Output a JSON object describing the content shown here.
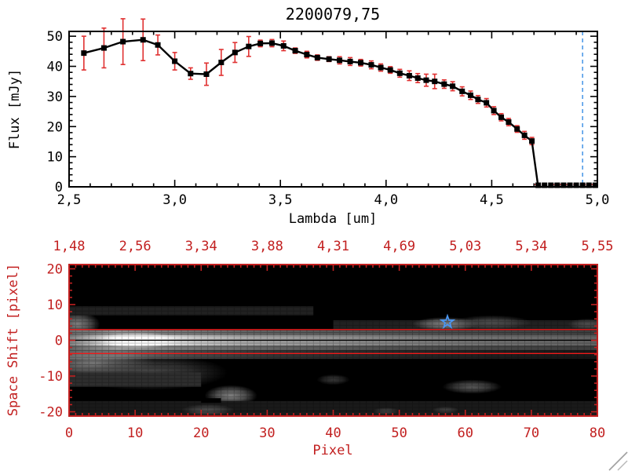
{
  "title": "2200079,75",
  "colors": {
    "background": "#ffffff",
    "spectrum_axis": "#000000",
    "error_bar_red": "#e03131",
    "zero_dash_red": "#e03131",
    "image_axis_red": "#c22020",
    "aperture_line_red": "#ef1a1a",
    "center_line_black": "#000000",
    "star_blue": "#4b96f0",
    "vline_blue": "#4f9be8",
    "resize_grip_gray": "#a0a0a0"
  },
  "chart_data": [
    {
      "type": "line",
      "title": "2200079,75",
      "xlabel": "Lambda [um]",
      "ylabel": "Flux [mJy]",
      "xlim": [
        2.5,
        5.0
      ],
      "ylim": [
        0,
        51.6
      ],
      "grid": false,
      "xticks": {
        "values": [
          2.5,
          3.0,
          3.5,
          4.0,
          4.5,
          5.0
        ],
        "labels": [
          "2,5",
          "3,0",
          "3,5",
          "4,0",
          "4,5",
          "5,0"
        ]
      },
      "yticks": {
        "values": [
          0,
          10,
          20,
          30,
          40,
          50
        ],
        "labels": [
          "0",
          "10",
          "20",
          "30",
          "40",
          "50"
        ]
      },
      "series": [
        {
          "name": "flux-spectrum",
          "marker": "filled-square",
          "line_color": "#000000",
          "error_color": "#e03131",
          "points": [
            [
              2.57,
              44.4,
              5.6
            ],
            [
              2.665,
              46.1,
              6.6
            ],
            [
              2.755,
              48.2,
              7.6
            ],
            [
              2.85,
              48.8,
              6.9
            ],
            [
              2.92,
              47.1,
              3.3
            ],
            [
              3.0,
              41.7,
              2.9
            ],
            [
              3.075,
              37.6,
              1.9
            ],
            [
              3.15,
              37.4,
              3.7
            ],
            [
              3.22,
              41.3,
              4.3
            ],
            [
              3.285,
              44.6,
              3.3
            ],
            [
              3.35,
              46.6,
              3.3
            ],
            [
              3.405,
              47.6,
              1.1
            ],
            [
              3.46,
              47.7,
              1.2
            ],
            [
              3.515,
              46.8,
              1.6
            ],
            [
              3.57,
              45.2,
              0.9
            ],
            [
              3.625,
              43.9,
              1.1
            ],
            [
              3.675,
              42.9,
              0.9
            ],
            [
              3.73,
              42.4,
              0.8
            ],
            [
              3.78,
              42.0,
              1.2
            ],
            [
              3.83,
              41.6,
              1.3
            ],
            [
              3.88,
              41.2,
              1.1
            ],
            [
              3.93,
              40.5,
              1.3
            ],
            [
              3.975,
              39.6,
              1.2
            ],
            [
              4.02,
              38.8,
              1.1
            ],
            [
              4.065,
              37.7,
              1.3
            ],
            [
              4.11,
              36.9,
              1.6
            ],
            [
              4.15,
              36.1,
              1.5
            ],
            [
              4.19,
              35.4,
              2.0
            ],
            [
              4.23,
              35.0,
              2.4
            ],
            [
              4.275,
              34.1,
              1.4
            ],
            [
              4.315,
              33.4,
              1.5
            ],
            [
              4.36,
              31.7,
              1.5
            ],
            [
              4.4,
              30.4,
              1.4
            ],
            [
              4.435,
              29.0,
              1.3
            ],
            [
              4.475,
              27.9,
              1.4
            ],
            [
              4.51,
              25.3,
              1.3
            ],
            [
              4.545,
              23.1,
              1.2
            ],
            [
              4.58,
              21.5,
              1.2
            ],
            [
              4.62,
              19.2,
              1.1
            ],
            [
              4.655,
              17.1,
              1.3
            ],
            [
              4.69,
              15.2,
              1.2
            ],
            [
              4.72,
              0,
              0
            ],
            [
              4.75,
              0,
              0
            ],
            [
              4.78,
              0,
              0
            ],
            [
              4.81,
              0,
              0
            ],
            [
              4.84,
              0,
              0
            ],
            [
              4.87,
              0,
              0
            ],
            [
              4.9,
              0,
              0
            ],
            [
              4.93,
              0,
              0
            ],
            [
              4.96,
              0,
              0
            ],
            [
              4.99,
              0,
              0
            ]
          ]
        }
      ],
      "zero_dashed_line": {
        "from": 4.7,
        "to": 5.0,
        "flux": 0,
        "style": "dashed",
        "color": "#e03131"
      },
      "vline": {
        "lambda": 4.93,
        "style": "dashed",
        "color": "#4f9be8"
      }
    },
    {
      "type": "heatmap",
      "xlabel": "Pixel",
      "ylabel": "Space Shift [pixel]",
      "xlim": [
        0,
        80
      ],
      "ylim": [
        -21.2,
        21.2
      ],
      "xticks": {
        "values": [
          0,
          10,
          20,
          30,
          40,
          50,
          60,
          70,
          80
        ],
        "labels": [
          "0",
          "10",
          "20",
          "30",
          "40",
          "50",
          "60",
          "70",
          "80"
        ]
      },
      "yticks": {
        "values": [
          20,
          10,
          0,
          -10,
          -20
        ],
        "labels": [
          "20",
          "10",
          "0",
          "-10",
          "-20"
        ]
      },
      "top_axis": {
        "tick_positions": [
          0,
          10,
          20,
          30,
          40,
          50,
          60,
          70,
          80
        ],
        "labels": [
          "1,48",
          "2,56",
          "3,34",
          "3,88",
          "4,31",
          "4,69",
          "5,03",
          "5,34",
          "5,55"
        ]
      },
      "overlays": {
        "red_hlines_shift": [
          3.0,
          -3.7
        ],
        "black_hline_shift": 0,
        "star_marker": {
          "pixel": 57.3,
          "shift": 5.1
        }
      },
      "features": [
        {
          "kind": "hband",
          "s0": -1.5,
          "s1": 1.5,
          "stops": [
            [
              0,
              0.5
            ],
            [
              0.05,
              0.75
            ],
            [
              0.09,
              0.97
            ],
            [
              0.17,
              0.95
            ],
            [
              0.24,
              0.78
            ],
            [
              0.33,
              0.66
            ],
            [
              0.47,
              0.58
            ],
            [
              0.63,
              0.5
            ],
            [
              0.8,
              0.44
            ],
            [
              1,
              0.38
            ]
          ]
        },
        {
          "kind": "hband",
          "s0": 1.5,
          "s1": 2.8,
          "stops": [
            [
              0,
              0.33
            ],
            [
              0.09,
              0.58
            ],
            [
              0.18,
              0.48
            ],
            [
              0.35,
              0.38
            ],
            [
              0.55,
              0.33
            ],
            [
              0.78,
              0.28
            ],
            [
              1,
              0.24
            ]
          ]
        },
        {
          "kind": "hband",
          "s0": -2.8,
          "s1": -1.5,
          "stops": [
            [
              0,
              0.38
            ],
            [
              0.09,
              0.62
            ],
            [
              0.2,
              0.48
            ],
            [
              0.4,
              0.38
            ],
            [
              0.62,
              0.31
            ],
            [
              1,
              0.24
            ]
          ]
        },
        {
          "kind": "hband",
          "s0": -5.2,
          "s1": -2.8,
          "stops": [
            [
              0,
              0.34
            ],
            [
              0.1,
              0.42
            ],
            [
              0.22,
              0.28
            ],
            [
              0.38,
              0.2
            ],
            [
              0.55,
              0.16
            ],
            [
              0.78,
              0.12
            ],
            [
              1,
              0.09
            ]
          ]
        },
        {
          "kind": "blob",
          "p": 10.5,
          "s": 0,
          "rp": 6,
          "rs": 2.3,
          "i": 1
        },
        {
          "kind": "blob",
          "p": 1.2,
          "s": 4.5,
          "rp": 3.5,
          "rs": 3.5,
          "i": 0.5
        },
        {
          "kind": "blob",
          "p": 4,
          "s": -6.5,
          "rp": 9,
          "rs": 4.5,
          "i": 0.5
        },
        {
          "kind": "blob",
          "p": 12,
          "s": -9,
          "rp": 12,
          "rs": 5,
          "i": 0.28
        },
        {
          "kind": "blob",
          "p": 24.5,
          "s": -15.5,
          "rp": 4,
          "rs": 3,
          "i": 0.5
        },
        {
          "kind": "rect",
          "p0": 0,
          "p1": 37,
          "s0": 7,
          "s1": 9.5,
          "i": 0.13
        },
        {
          "kind": "rect",
          "p0": 0,
          "p1": 20,
          "s0": -13,
          "s1": -9,
          "i": 0.18
        },
        {
          "kind": "rect",
          "p0": 40,
          "p1": 80,
          "s0": 2.8,
          "s1": 5.6,
          "i": 0.13
        },
        {
          "kind": "blob",
          "p": 57,
          "s": 4.6,
          "rp": 5,
          "rs": 1.9,
          "i": 0.5
        },
        {
          "kind": "blob",
          "p": 64,
          "s": 5,
          "rp": 6,
          "rs": 2,
          "i": 0.3
        },
        {
          "kind": "blob",
          "p": 78.5,
          "s": 4.5,
          "rp": 3,
          "rs": 1.6,
          "i": 0.3
        },
        {
          "kind": "blob",
          "p": 61,
          "s": -13,
          "rp": 4.5,
          "rs": 2,
          "i": 0.35
        },
        {
          "kind": "blob",
          "p": 40,
          "s": -11,
          "rp": 2.5,
          "rs": 1.5,
          "i": 0.22
        },
        {
          "kind": "rect",
          "p0": 0,
          "p1": 80,
          "s0": -21.2,
          "s1": -17,
          "i": 0.1
        },
        {
          "kind": "blob",
          "p": 21,
          "s": -19.5,
          "rp": 4,
          "rs": 1.6,
          "i": 0.3
        },
        {
          "kind": "blob",
          "p": 48,
          "s": -19.8,
          "rp": 2,
          "rs": 1,
          "i": 0.25
        },
        {
          "kind": "blob",
          "p": 57,
          "s": -19.5,
          "rp": 2,
          "rs": 1,
          "i": 0.25
        },
        {
          "kind": "rect",
          "p0": 10,
          "p1": 18,
          "s0": -16.5,
          "s1": -14.5,
          "i": 0
        },
        {
          "kind": "rect",
          "p0": 20,
          "p1": 23,
          "s0": -17.5,
          "s1": -16.2,
          "i": 0
        }
      ]
    }
  ]
}
